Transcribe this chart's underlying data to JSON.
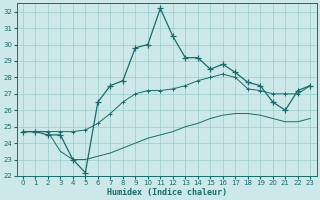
{
  "xlabel": "Humidex (Indice chaleur)",
  "bg_color": "#cce8e8",
  "grid_color": "#99cccc",
  "line_color": "#1a6b6b",
  "xlim": [
    -0.5,
    23.5
  ],
  "ylim": [
    22,
    32.5
  ],
  "xticks": [
    0,
    1,
    2,
    3,
    4,
    5,
    6,
    7,
    8,
    9,
    10,
    11,
    12,
    13,
    14,
    15,
    16,
    17,
    18,
    19,
    20,
    21,
    22,
    23
  ],
  "yticks": [
    22,
    23,
    24,
    25,
    26,
    27,
    28,
    29,
    30,
    31,
    32
  ],
  "main_y": [
    24.7,
    24.7,
    24.5,
    24.5,
    23.0,
    22.2,
    26.5,
    27.5,
    27.8,
    29.8,
    30.0,
    32.2,
    30.5,
    29.2,
    29.2,
    28.5,
    28.8,
    28.3,
    27.7,
    27.5,
    26.5,
    26.0,
    27.2,
    27.5
  ],
  "upper_y": [
    24.7,
    24.7,
    24.7,
    24.7,
    24.7,
    24.8,
    25.2,
    25.8,
    26.5,
    27.0,
    27.2,
    27.2,
    27.3,
    27.5,
    27.8,
    28.0,
    28.2,
    28.0,
    27.3,
    27.2,
    27.0,
    27.0,
    27.0,
    27.5
  ],
  "lower_y": [
    24.7,
    24.7,
    24.7,
    23.5,
    23.0,
    23.0,
    23.2,
    23.4,
    23.7,
    24.0,
    24.3,
    24.5,
    24.7,
    25.0,
    25.2,
    25.5,
    25.7,
    25.8,
    25.8,
    25.7,
    25.5,
    25.3,
    25.3,
    25.5
  ]
}
